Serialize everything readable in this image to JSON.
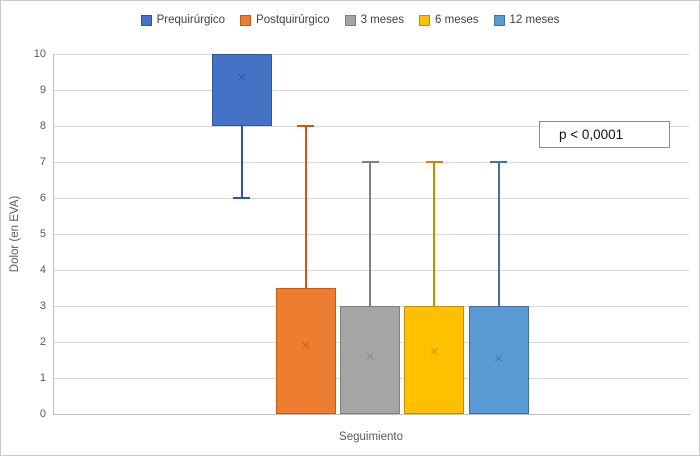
{
  "chart_data": {
    "type": "boxplot",
    "title": "",
    "xlabel": "Seguimiento",
    "ylabel": "Dolor (en EVA)",
    "ylim": [
      0,
      10
    ],
    "yticks": [
      0,
      1,
      2,
      3,
      4,
      5,
      6,
      7,
      8,
      9,
      10
    ],
    "grid": true,
    "legend_position": "top-center",
    "annotation": "p < 0,0001",
    "mean_marker_glyph": "×",
    "series": [
      {
        "name": "Prequirúrgico",
        "q1": 8,
        "q3": 10,
        "whisker_low": 6,
        "whisker_high": 10,
        "mean": 9.3,
        "fill": "#4472C4",
        "stroke": "#2F5597"
      },
      {
        "name": "Postquirúrgico",
        "q1": 0,
        "q3": 3.5,
        "whisker_low": 0,
        "whisker_high": 8,
        "mean": 1.85,
        "fill": "#ED7D31",
        "stroke": "#C55A11"
      },
      {
        "name": "3 meses",
        "q1": 0,
        "q3": 3,
        "whisker_low": 0,
        "whisker_high": 7,
        "mean": 1.55,
        "fill": "#A5A5A5",
        "stroke": "#7F7F7F"
      },
      {
        "name": "6 meses",
        "q1": 0,
        "q3": 3,
        "whisker_low": 0,
        "whisker_high": 7,
        "mean": 1.7,
        "fill": "#FFC000",
        "stroke": "#BF8F00"
      },
      {
        "name": "12 meses",
        "q1": 0,
        "q3": 3,
        "whisker_low": 0,
        "whisker_high": 7,
        "mean": 1.5,
        "fill": "#5B9BD5",
        "stroke": "#41719C"
      }
    ],
    "colors": {
      "gridline": "#D9D9D9",
      "axis": "#BFBFBF",
      "tick_label": "#595959",
      "annotation_border": "#8C8C8C"
    }
  }
}
